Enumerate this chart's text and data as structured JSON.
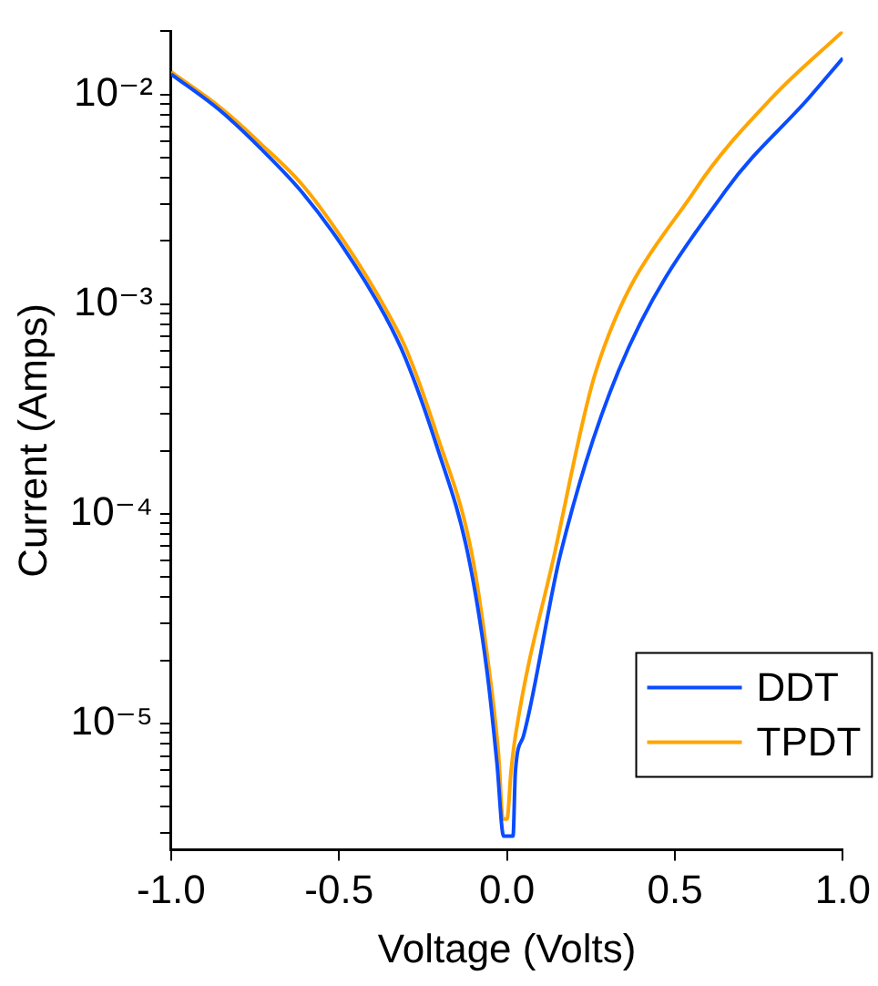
{
  "chart_data": {
    "type": "line",
    "xlabel": "Voltage (Volts)",
    "ylabel": "Current (Amps)",
    "log": "y",
    "grid": false,
    "legend": "bottom right",
    "xlim": [
      -1,
      1
    ],
    "xticks": [
      {
        "value": -1,
        "label": "-1.0"
      },
      {
        "value": -0.5,
        "label": "-0.5"
      },
      {
        "value": 0,
        "label": "0.0"
      },
      {
        "value": 0.5,
        "label": "0.5"
      },
      {
        "value": 1,
        "label": "1.0"
      }
    ],
    "ylim": [
      2.5e-06,
      0.02
    ],
    "yticks": [
      {
        "value": 3e-06,
        "label": null
      },
      {
        "value": 4e-06,
        "label": null
      },
      {
        "value": 5e-06,
        "label": null
      },
      {
        "value": 6e-06,
        "label": null
      },
      {
        "value": 7e-06,
        "label": null
      },
      {
        "value": 8e-06,
        "label": null
      },
      {
        "value": 9e-06,
        "label": null
      },
      {
        "value": 1e-05,
        "label": "10⁻⁵"
      },
      {
        "value": 2e-05,
        "label": null
      },
      {
        "value": 3e-05,
        "label": null
      },
      {
        "value": 4e-05,
        "label": null
      },
      {
        "value": 5e-05,
        "label": null
      },
      {
        "value": 6e-05,
        "label": null
      },
      {
        "value": 7e-05,
        "label": null
      },
      {
        "value": 8e-05,
        "label": null
      },
      {
        "value": 9e-05,
        "label": null
      },
      {
        "value": 0.0001,
        "label": "10⁻⁴"
      },
      {
        "value": 0.0002,
        "label": null
      },
      {
        "value": 0.0003,
        "label": null
      },
      {
        "value": 0.0004,
        "label": null
      },
      {
        "value": 0.0005,
        "label": null
      },
      {
        "value": 0.0006,
        "label": null
      },
      {
        "value": 0.0007,
        "label": null
      },
      {
        "value": 0.0008,
        "label": null
      },
      {
        "value": 0.0009,
        "label": null
      },
      {
        "value": 0.001,
        "label": "10⁻³"
      },
      {
        "value": 0.002,
        "label": null
      },
      {
        "value": 0.003,
        "label": null
      },
      {
        "value": 0.004,
        "label": null
      },
      {
        "value": 0.005,
        "label": null
      },
      {
        "value": 0.006,
        "label": null
      },
      {
        "value": 0.007,
        "label": null
      },
      {
        "value": 0.008,
        "label": null
      },
      {
        "value": 0.009,
        "label": null
      },
      {
        "value": 0.01,
        "label": "10⁻²"
      },
      {
        "value": 0.02,
        "label": null
      }
    ],
    "series": [
      {
        "name": "DDT",
        "color": "#0a4cff",
        "x": [
          -1,
          -0.855,
          -0.732,
          -0.609,
          -0.486,
          -0.363,
          -0.302,
          -0.209,
          -0.117,
          -0.06,
          -0.03,
          -0.01,
          0.01,
          0.018,
          0.025,
          0.049,
          0.16,
          0.332,
          0.652,
          0.898,
          1
        ],
        "values": [
          0.0125,
          0.0084,
          0.0055,
          0.0034,
          0.00185,
          0.00088,
          0.00055,
          0.00021,
          6.5e-05,
          1.8e-05,
          6.5e-06,
          2.9e-06,
          2.9e-06,
          2.9e-06,
          5.9e-06,
          8.7e-06,
          6.5e-05,
          0.00048,
          0.0035,
          0.0096,
          0.0149
        ]
      },
      {
        "name": "TPDT",
        "color": "#ffa500",
        "x": [
          -1,
          -0.855,
          -0.732,
          -0.609,
          -0.486,
          -0.363,
          -0.302,
          -0.209,
          -0.105,
          -0.055,
          -0.025,
          -0.012,
          0,
          0.012,
          0.025,
          0.142,
          0.265,
          0.56,
          0.788,
          1
        ],
        "values": [
          0.0128,
          0.0087,
          0.0058,
          0.0037,
          0.002,
          0.00096,
          0.00062,
          0.00024,
          6.5e-05,
          1.9e-05,
          7.1e-06,
          3.5e-06,
          3.5e-06,
          5.9e-06,
          8.7e-06,
          6.5e-05,
          0.00048,
          0.0035,
          0.0096,
          0.02
        ]
      }
    ]
  }
}
